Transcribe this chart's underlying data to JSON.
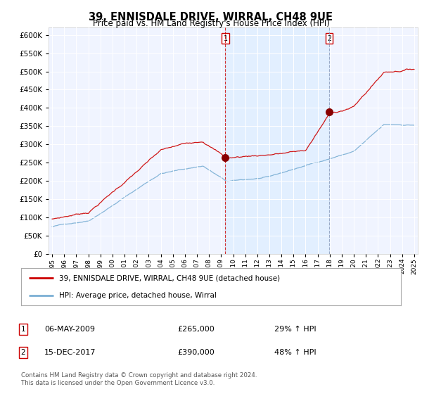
{
  "title": "39, ENNISDALE DRIVE, WIRRAL, CH48 9UE",
  "subtitle": "Price paid vs. HM Land Registry's House Price Index (HPI)",
  "ytick_values": [
    0,
    50000,
    100000,
    150000,
    200000,
    250000,
    300000,
    350000,
    400000,
    450000,
    500000,
    550000,
    600000
  ],
  "ylim": [
    0,
    620000
  ],
  "hpi_color": "#7bafd4",
  "price_color": "#cc0000",
  "shade_color": "#ddeeff",
  "marker1_date": 2009.35,
  "marker1_price": 265000,
  "marker2_date": 2017.95,
  "marker2_price": 390000,
  "legend_line1": "39, ENNISDALE DRIVE, WIRRAL, CH48 9UE (detached house)",
  "legend_line2": "HPI: Average price, detached house, Wirral",
  "note1_num": "1",
  "note1_date": "06-MAY-2009",
  "note1_price": "£265,000",
  "note1_hpi": "29% ↑ HPI",
  "note2_num": "2",
  "note2_date": "15-DEC-2017",
  "note2_price": "£390,000",
  "note2_hpi": "48% ↑ HPI",
  "copyright": "Contains HM Land Registry data © Crown copyright and database right 2024.\nThis data is licensed under the Open Government Licence v3.0.",
  "plot_bg_color": "#f0f4ff",
  "fig_bg_color": "#ffffff"
}
